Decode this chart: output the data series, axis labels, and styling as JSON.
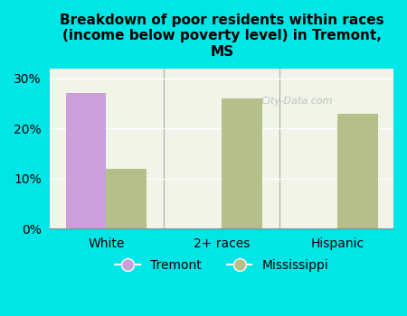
{
  "title": "Breakdown of poor residents within races\n(income below poverty level) in Tremont,\nMS",
  "categories": [
    "White",
    "2+ races",
    "Hispanic"
  ],
  "tremont_values": [
    27.0,
    null,
    null
  ],
  "mississippi_values": [
    12.0,
    26.0,
    23.0
  ],
  "tremont_color": "#c9a0dc",
  "mississippi_color": "#b5bf8a",
  "background_color": "#00e5e5",
  "plot_bg_color": "#f0f5e8",
  "yticks": [
    0,
    10,
    20,
    30
  ],
  "ylim": [
    0,
    32
  ],
  "bar_width": 0.35,
  "legend_labels": [
    "Tremont",
    "Mississippi"
  ],
  "watermark": "City-Data.com"
}
